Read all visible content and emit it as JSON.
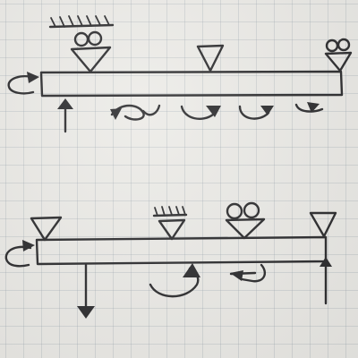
{
  "colors": {
    "paper": "#ecebe7",
    "grid": "#a5adb5",
    "ink": "#2b2b2d"
  },
  "sketches": [
    {
      "beam": "top",
      "supports": [
        "fixed-hinge-with-rollers",
        "hinge",
        "roller"
      ],
      "moments": [
        "counterclockwise-left-end",
        "clockwise",
        "clockwise",
        "clockwise",
        "clockwise"
      ],
      "forces": [
        "upward"
      ]
    },
    {
      "beam": "bottom",
      "supports": [
        "hinge",
        "fixed-hinge",
        "roller",
        "hinge"
      ],
      "moments": [
        "counterclockwise-left-end",
        "counterclockwise",
        "clockwise"
      ],
      "forces": [
        "downward",
        "upward-at-right-end"
      ]
    }
  ]
}
